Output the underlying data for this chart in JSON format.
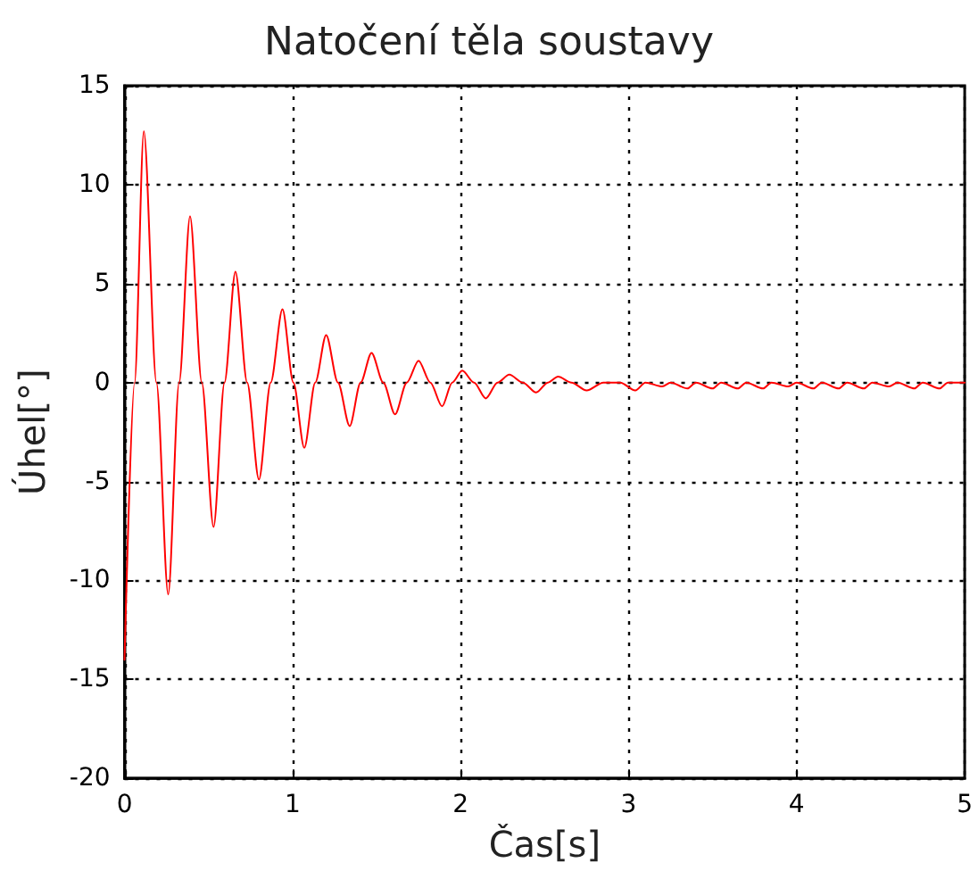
{
  "chart_data": {
    "type": "line",
    "title": "Natočení těla soustavy",
    "xlabel": "Čas[s]",
    "ylabel": "Úhel[°]",
    "x": [
      0,
      0.06,
      0.115,
      0.19,
      0.26,
      0.325,
      0.39,
      0.46,
      0.53,
      0.595,
      0.66,
      0.73,
      0.8,
      0.87,
      0.94,
      1.005,
      1.07,
      1.135,
      1.2,
      1.27,
      1.34,
      1.405,
      1.47,
      1.54,
      1.61,
      1.68,
      1.75,
      1.82,
      1.89,
      1.95,
      2.01,
      2.08,
      2.15,
      2.22,
      2.29,
      2.37,
      2.45,
      2.52,
      2.58,
      2.66,
      2.75,
      2.85,
      2.95,
      3.04,
      3.1,
      3.2,
      3.25,
      3.35,
      3.4,
      3.5,
      3.55,
      3.65,
      3.7,
      3.8,
      3.85,
      3.95,
      4.0,
      4.1,
      4.15,
      4.25,
      4.3,
      4.4,
      4.45,
      4.55,
      4.6,
      4.7,
      4.75,
      4.85,
      4.9,
      5
    ],
    "series": [
      {
        "color": "#ff0000",
        "values": [
          -14,
          0,
          12.7,
          0,
          -10.7,
          0,
          8.4,
          0,
          -7.3,
          0,
          5.6,
          0,
          -4.9,
          0,
          3.7,
          0,
          -3.3,
          0,
          2.4,
          0,
          -2.2,
          0,
          1.5,
          0,
          -1.6,
          0,
          1.1,
          0,
          -1.2,
          0,
          0.6,
          0,
          -0.8,
          0,
          0.4,
          0,
          -0.5,
          0,
          0.3,
          0,
          -0.4,
          0,
          0,
          -0.4,
          0,
          -0.2,
          0,
          -0.3,
          0,
          -0.3,
          0,
          -0.3,
          0,
          -0.3,
          0,
          -0.2,
          0,
          -0.3,
          0,
          -0.3,
          0,
          -0.3,
          0,
          -0.2,
          0,
          -0.3,
          0,
          -0.3,
          0,
          0
        ]
      }
    ],
    "xlim": [
      0,
      5
    ],
    "xticks": [
      0,
      1,
      2,
      3,
      4,
      5
    ],
    "ylim": [
      -20,
      15
    ],
    "yticks": [
      -20,
      -15,
      -10,
      -5,
      0,
      5,
      10,
      15
    ],
    "grid": true,
    "marker": "none",
    "line_style": "solid"
  }
}
